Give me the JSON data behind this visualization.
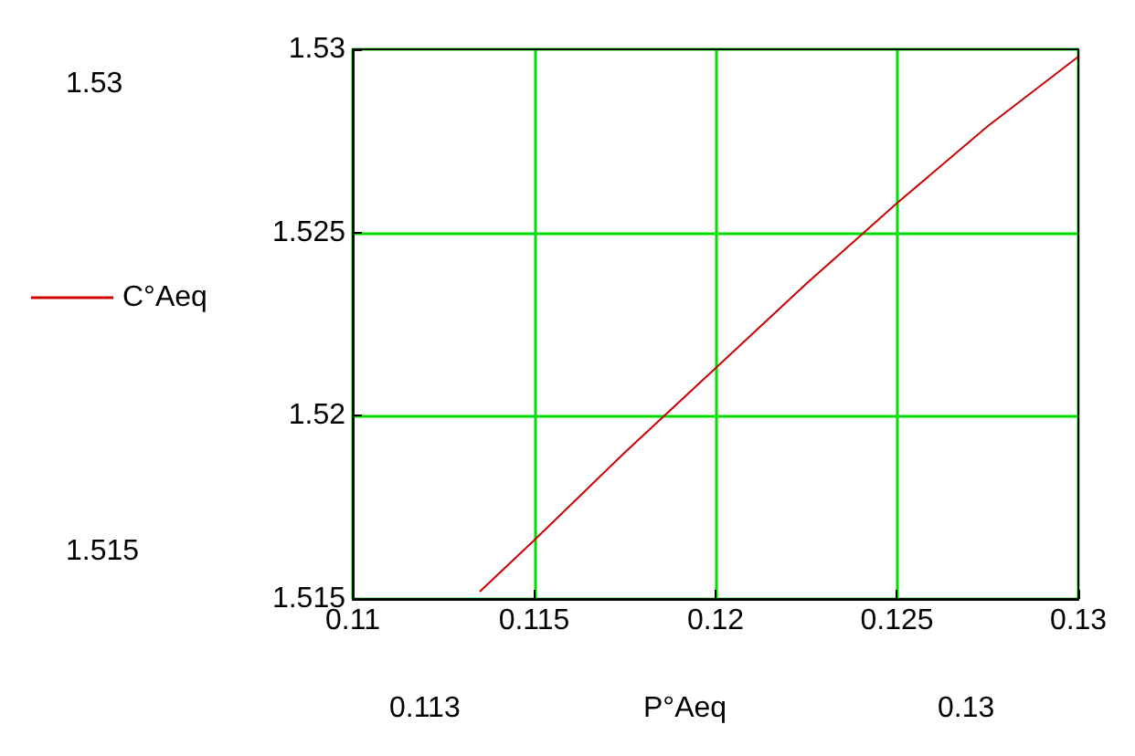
{
  "chart_data": {
    "type": "line",
    "xlabel": "P°Aeq",
    "x": [
      0.1135,
      0.115,
      0.1175,
      0.12,
      0.1225,
      0.125,
      0.1275,
      0.13
    ],
    "series": [
      {
        "name": "C°Aeq",
        "color": "#cc0000",
        "values": [
          1.5152,
          1.5166,
          1.519,
          1.5213,
          1.5236,
          1.5258,
          1.5279,
          1.5298
        ]
      }
    ],
    "xlim": [
      0.11,
      0.13
    ],
    "xticks": [
      0.11,
      0.115,
      0.12,
      0.125,
      0.13
    ],
    "ylim": [
      1.515,
      1.53
    ],
    "yticks": [
      1.515,
      1.52,
      1.525,
      1.53
    ],
    "grid": true,
    "legend": "left",
    "marker": "none",
    "line_style": "solid",
    "annotations": [
      "1.53",
      "1.515",
      "0.113",
      "0.13"
    ]
  }
}
